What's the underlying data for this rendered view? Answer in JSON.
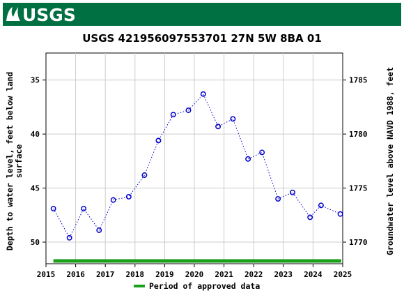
{
  "header": {
    "logo_text": "USGS",
    "banner_color": "#006f41"
  },
  "chart_data": {
    "type": "scatter",
    "title": "USGS 421956097553701 27N 5W 8BA  01",
    "ylabel_left": [
      "Depth to water level, feet below land",
      "surface"
    ],
    "ylabel_right": "Groundwater level above NAVD 1988, feet",
    "xlim": [
      2015,
      2025
    ],
    "ylim_left": [
      52,
      32.5
    ],
    "ylim_right": [
      1768,
      1787.5
    ],
    "x_ticks": [
      "2015",
      "2016",
      "2017",
      "2018",
      "2019",
      "2020",
      "2021",
      "2022",
      "2023",
      "2024",
      "2025"
    ],
    "y_ticks_left": [
      "35",
      "40",
      "45",
      "50"
    ],
    "y_ticks_right": [
      "1785",
      "1780",
      "1775",
      "1770"
    ],
    "grid": true,
    "series": [
      {
        "marker": "open-circle",
        "line": "dotted",
        "color": "#0000cc",
        "x": [
          2015.25,
          2015.79,
          2016.27,
          2016.79,
          2017.27,
          2017.79,
          2018.32,
          2018.79,
          2019.29,
          2019.8,
          2020.3,
          2020.8,
          2021.3,
          2021.81,
          2022.28,
          2022.82,
          2023.31,
          2023.9,
          2024.27,
          2024.92
        ],
        "y": [
          46.9,
          49.6,
          46.9,
          48.9,
          46.1,
          45.8,
          43.8,
          40.6,
          38.2,
          37.8,
          36.3,
          39.3,
          38.6,
          42.3,
          41.7,
          46.0,
          45.4,
          47.7,
          46.6,
          47.4
        ]
      }
    ],
    "approved_period": {
      "label": "Period of approved data",
      "color": "#1aa01a",
      "x_range": [
        2015.25,
        2024.95
      ]
    },
    "legend_position": "bottom-center"
  }
}
